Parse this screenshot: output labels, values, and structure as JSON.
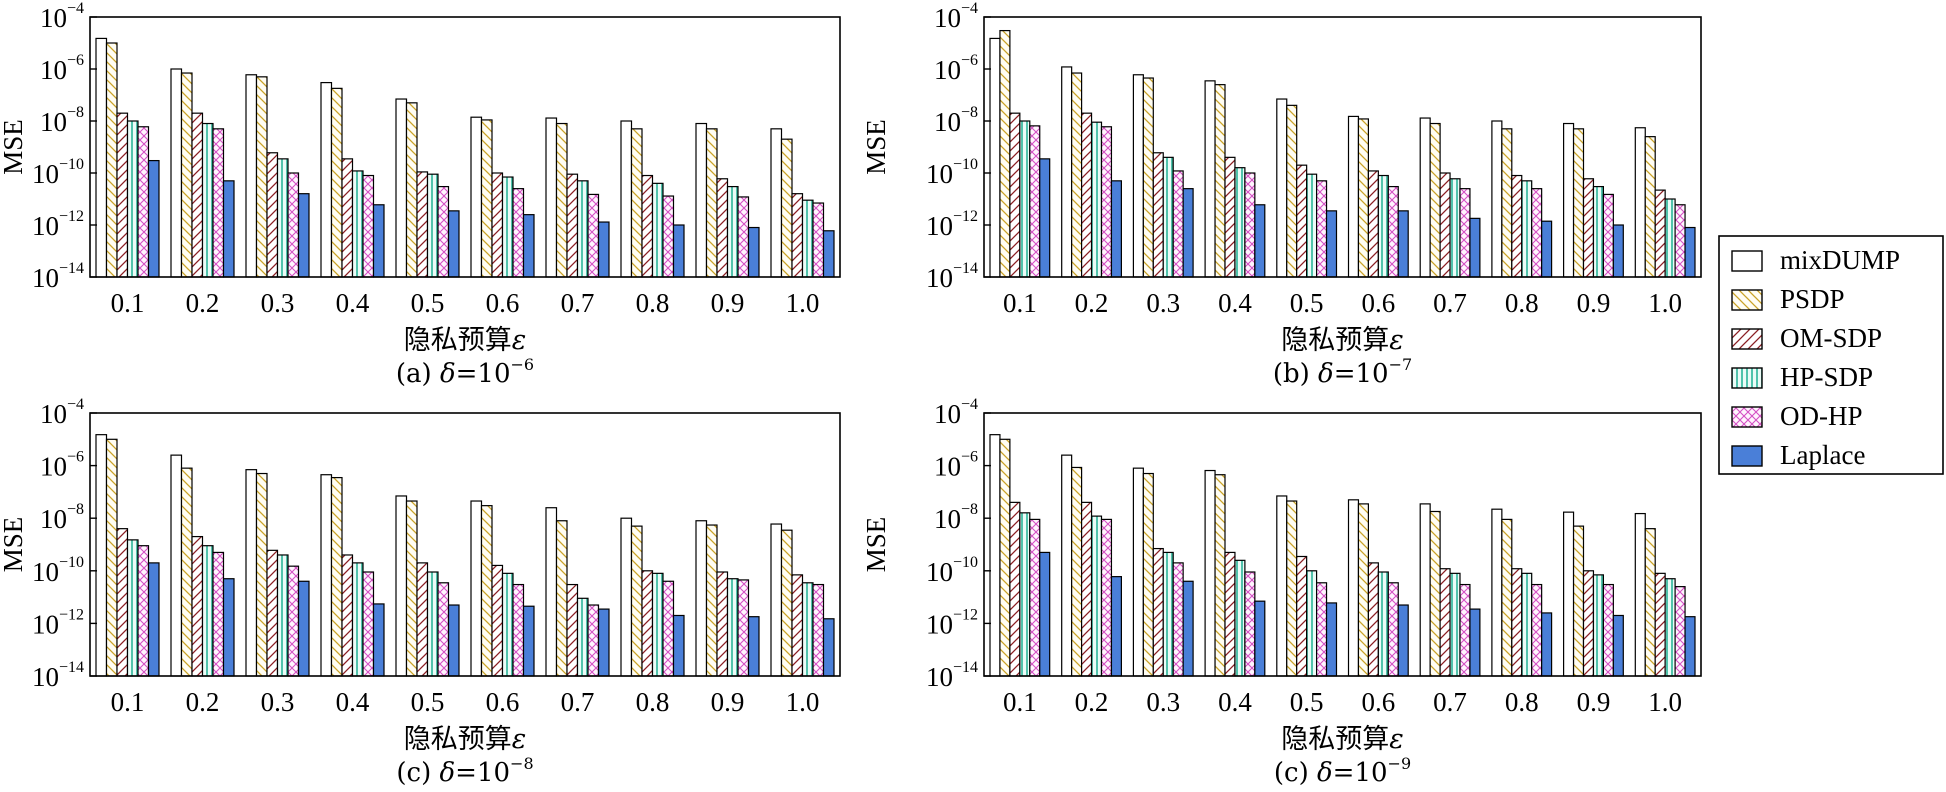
{
  "legend": {
    "entries": [
      {
        "label": "mixDUMP",
        "pattern": "none"
      },
      {
        "label": "PSDP",
        "pattern": "hatch-back"
      },
      {
        "label": "OM-SDP",
        "pattern": "hatch-fwd"
      },
      {
        "label": "HP-SDP",
        "pattern": "vlines"
      },
      {
        "label": "OD-HP",
        "pattern": "cross"
      },
      {
        "label": "Laplace",
        "pattern": "solid"
      }
    ]
  },
  "colors": {
    "PSDP": "#c9a227",
    "OM-SDP": "#8b1f24",
    "HP-SDP": "#2bb59a",
    "OD-HP": "#d44fc4",
    "Laplace": "#4a7fd8",
    "mixDUMP": "#ffffff"
  },
  "chart_data": [
    {
      "type": "bar",
      "scale": "log",
      "ylim_exp": [
        -14,
        -4
      ],
      "ylabel": "MSE",
      "xlabel": "隐私预算",
      "xlabel_symbol": "ε",
      "caption_prefix": "(a) ",
      "caption_symbol": "δ",
      "caption_eq": "=10",
      "caption_exp": "−6",
      "categories": [
        "0.1",
        "0.2",
        "0.3",
        "0.4",
        "0.5",
        "0.6",
        "0.7",
        "0.8",
        "0.9",
        "1.0"
      ],
      "series": [
        {
          "name": "mixDUMP",
          "values": [
            1.5e-05,
            1e-06,
            6e-07,
            3e-07,
            7e-08,
            1.4e-08,
            1.3e-08,
            1e-08,
            8e-09,
            5e-09
          ]
        },
        {
          "name": "PSDP",
          "values": [
            1e-05,
            7e-07,
            5e-07,
            1.8e-07,
            5e-08,
            1.1e-08,
            8e-09,
            5e-09,
            5e-09,
            2e-09
          ]
        },
        {
          "name": "OM-SDP",
          "values": [
            2e-08,
            2e-08,
            6e-10,
            3.5e-10,
            1.1e-10,
            1e-10,
            9e-11,
            8e-11,
            6e-11,
            1.6e-11
          ]
        },
        {
          "name": "HP-SDP",
          "values": [
            1e-08,
            8e-09,
            3.5e-10,
            1.2e-10,
            9e-11,
            7e-11,
            5e-11,
            4e-11,
            3e-11,
            9e-12
          ]
        },
        {
          "name": "OD-HP",
          "values": [
            6e-09,
            5e-09,
            1e-10,
            8e-11,
            3e-11,
            2.5e-11,
            1.5e-11,
            1.3e-11,
            1.2e-11,
            7e-12
          ]
        },
        {
          "name": "Laplace",
          "values": [
            3e-10,
            5e-11,
            1.6e-11,
            6e-12,
            3.5e-12,
            2.5e-12,
            1.3e-12,
            1e-12,
            8e-13,
            6e-13
          ]
        }
      ]
    },
    {
      "type": "bar",
      "scale": "log",
      "ylim_exp": [
        -14,
        -4
      ],
      "ylabel": "MSE",
      "xlabel": "隐私预算",
      "xlabel_symbol": "ε",
      "caption_prefix": "(b) ",
      "caption_symbol": "δ",
      "caption_eq": "=10",
      "caption_exp": "−7",
      "categories": [
        "0.1",
        "0.2",
        "0.3",
        "0.4",
        "0.5",
        "0.6",
        "0.7",
        "0.8",
        "0.9",
        "1.0"
      ],
      "series": [
        {
          "name": "mixDUMP",
          "values": [
            1.5e-05,
            1.2e-06,
            6e-07,
            3.5e-07,
            7e-08,
            1.5e-08,
            1.3e-08,
            1e-08,
            8e-09,
            5.5e-09
          ]
        },
        {
          "name": "PSDP",
          "values": [
            3e-05,
            7e-07,
            4.5e-07,
            2.5e-07,
            4e-08,
            1.2e-08,
            8e-09,
            5e-09,
            5e-09,
            2.5e-09
          ]
        },
        {
          "name": "OM-SDP",
          "values": [
            2e-08,
            2e-08,
            6e-10,
            4e-10,
            2e-10,
            1.2e-10,
            1e-10,
            8e-11,
            6e-11,
            2.2e-11
          ]
        },
        {
          "name": "HP-SDP",
          "values": [
            1e-08,
            9e-09,
            4e-10,
            1.6e-10,
            9e-11,
            8e-11,
            6e-11,
            5e-11,
            3e-11,
            1e-11
          ]
        },
        {
          "name": "OD-HP",
          "values": [
            6.5e-09,
            6e-09,
            1.2e-10,
            1e-10,
            5e-11,
            3e-11,
            2.5e-11,
            2.5e-11,
            1.5e-11,
            6e-12
          ]
        },
        {
          "name": "Laplace",
          "values": [
            3.5e-10,
            5e-11,
            2.5e-11,
            6e-12,
            3.5e-12,
            3.5e-12,
            1.8e-12,
            1.4e-12,
            1e-12,
            8e-13
          ]
        }
      ]
    },
    {
      "type": "bar",
      "scale": "log",
      "ylim_exp": [
        -14,
        -4
      ],
      "ylabel": "MSE",
      "xlabel": "隐私预算",
      "xlabel_symbol": "ε",
      "caption_prefix": "(c) ",
      "caption_symbol": "δ",
      "caption_eq": "=10",
      "caption_exp": "−8",
      "categories": [
        "0.1",
        "0.2",
        "0.3",
        "0.4",
        "0.5",
        "0.6",
        "0.7",
        "0.8",
        "0.9",
        "1.0"
      ],
      "series": [
        {
          "name": "mixDUMP",
          "values": [
            1.5e-05,
            2.5e-06,
            7e-07,
            4.5e-07,
            7e-08,
            4.5e-08,
            2.5e-08,
            1e-08,
            8e-09,
            6e-09
          ]
        },
        {
          "name": "PSDP",
          "values": [
            1e-05,
            8e-07,
            5e-07,
            3.5e-07,
            4.5e-08,
            3e-08,
            8e-09,
            5e-09,
            5.5e-09,
            3.5e-09
          ]
        },
        {
          "name": "OM-SDP",
          "values": [
            4e-09,
            2e-09,
            6e-10,
            4e-10,
            2e-10,
            1.6e-10,
            3e-11,
            1e-10,
            9e-11,
            7e-11
          ]
        },
        {
          "name": "HP-SDP",
          "values": [
            1.5e-09,
            9e-10,
            4e-10,
            2e-10,
            9e-11,
            8e-11,
            9e-12,
            8e-11,
            5e-11,
            3.5e-11
          ]
        },
        {
          "name": "OD-HP",
          "values": [
            9e-10,
            5e-10,
            1.5e-10,
            9e-11,
            3.5e-11,
            3e-11,
            5e-12,
            4e-11,
            4.5e-11,
            3e-11
          ]
        },
        {
          "name": "Laplace",
          "values": [
            2e-10,
            5e-11,
            4e-11,
            5.5e-12,
            5e-12,
            4.5e-12,
            3.5e-12,
            2e-12,
            1.8e-12,
            1.5e-12
          ]
        }
      ]
    },
    {
      "type": "bar",
      "scale": "log",
      "ylim_exp": [
        -14,
        -4
      ],
      "ylabel": "MSE",
      "xlabel": "隐私预算",
      "xlabel_symbol": "ε",
      "caption_prefix": "(c) ",
      "caption_symbol": "δ",
      "caption_eq": "=10",
      "caption_exp": "−9",
      "categories": [
        "0.1",
        "0.2",
        "0.3",
        "0.4",
        "0.5",
        "0.6",
        "0.7",
        "0.8",
        "0.9",
        "1.0"
      ],
      "series": [
        {
          "name": "mixDUMP",
          "values": [
            1.5e-05,
            2.5e-06,
            8e-07,
            6.5e-07,
            7e-08,
            5e-08,
            3.5e-08,
            2.2e-08,
            1.7e-08,
            1.5e-08
          ]
        },
        {
          "name": "PSDP",
          "values": [
            1e-05,
            8.5e-07,
            5e-07,
            4.5e-07,
            4.5e-08,
            3.5e-08,
            1.8e-08,
            9e-09,
            5e-09,
            4e-09
          ]
        },
        {
          "name": "OM-SDP",
          "values": [
            4e-08,
            4e-08,
            7e-10,
            5e-10,
            3.5e-10,
            2e-10,
            1.2e-10,
            1.2e-10,
            1e-10,
            8e-11
          ]
        },
        {
          "name": "HP-SDP",
          "values": [
            1.6e-08,
            1.2e-08,
            5e-10,
            2.5e-10,
            1e-10,
            9e-11,
            8e-11,
            8e-11,
            7e-11,
            5e-11
          ]
        },
        {
          "name": "OD-HP",
          "values": [
            9e-09,
            9e-09,
            2e-10,
            9e-11,
            3.5e-11,
            3.5e-11,
            3e-11,
            3e-11,
            3e-11,
            2.5e-11
          ]
        },
        {
          "name": "Laplace",
          "values": [
            5e-10,
            6e-11,
            4e-11,
            7e-12,
            6e-12,
            5e-12,
            3.5e-12,
            2.5e-12,
            2e-12,
            1.8e-12
          ]
        }
      ]
    }
  ]
}
